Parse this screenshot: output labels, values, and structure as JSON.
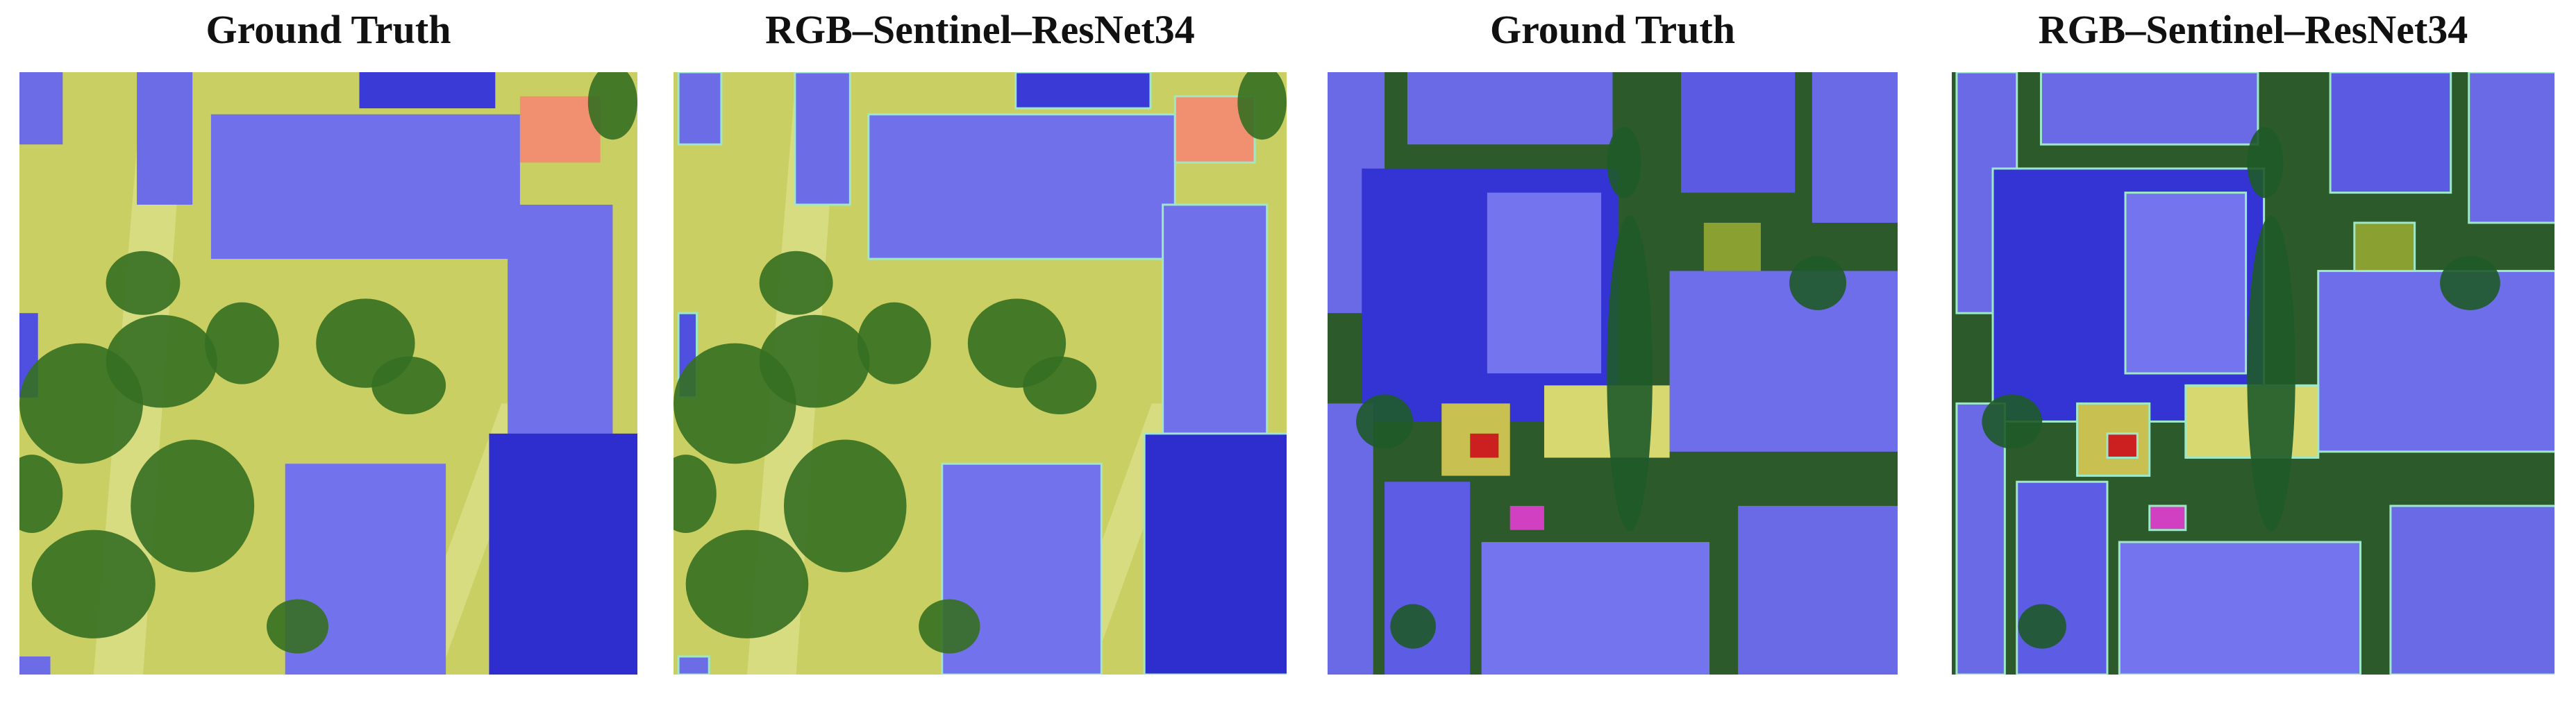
{
  "panels": [
    {
      "title": "Ground Truth"
    },
    {
      "title": "RGB–Sentinel–ResNet34"
    },
    {
      "title": "Ground Truth"
    },
    {
      "title": "RGB–Sentinel–ResNet34"
    }
  ]
}
